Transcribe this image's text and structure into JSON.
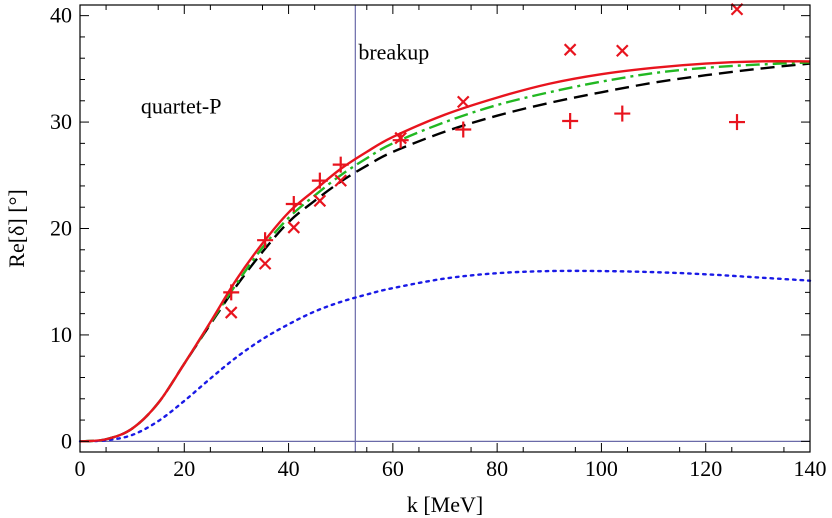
{
  "chart_data": {
    "type": "line",
    "title": "",
    "xlabel": "k [MeV]",
    "ylabel": "Re[δ] [°]",
    "xlim": [
      0,
      140
    ],
    "ylim": [
      -1,
      41
    ],
    "xticks": [
      0,
      20,
      40,
      60,
      80,
      100,
      120,
      140
    ],
    "yticks": [
      0,
      10,
      20,
      30,
      40
    ],
    "grid": false,
    "annotations": [
      {
        "text": "quartet-P",
        "x": 4,
        "y": 31
      },
      {
        "text": "breakup",
        "x": 53,
        "y": 37
      }
    ],
    "reference_lines": [
      {
        "orientation": "vertical",
        "value": 52.8,
        "color": "#6a6aa8"
      },
      {
        "orientation": "horizontal",
        "value": 0,
        "color": "#6a6aa8"
      }
    ],
    "series": [
      {
        "name": "solid",
        "style": "solid",
        "color": "#e8141e",
        "x": [
          0,
          5,
          10,
          15,
          20,
          25,
          30,
          35,
          40,
          45,
          50,
          55,
          60,
          70,
          80,
          90,
          100,
          110,
          120,
          130,
          140
        ],
        "y": [
          0,
          0.2,
          1.2,
          3.6,
          7.3,
          11.2,
          15.2,
          18.6,
          21.5,
          23.6,
          25.6,
          27.2,
          28.6,
          30.7,
          32.3,
          33.6,
          34.5,
          35.1,
          35.5,
          35.7,
          35.7
        ]
      },
      {
        "name": "dash-dot",
        "style": "dashdot",
        "color": "#22b822",
        "x": [
          0,
          5,
          10,
          15,
          20,
          25,
          30,
          35,
          40,
          45,
          50,
          55,
          60,
          70,
          80,
          90,
          100,
          110,
          120,
          130,
          140
        ],
        "y": [
          0,
          0.2,
          1.2,
          3.6,
          7.3,
          11.1,
          14.8,
          18.2,
          21.0,
          23.1,
          25.0,
          26.6,
          28.0,
          30.0,
          31.6,
          32.8,
          33.8,
          34.6,
          35.1,
          35.4,
          35.6
        ]
      },
      {
        "name": "dashed",
        "style": "dashed",
        "color": "#000000",
        "x": [
          0,
          5,
          10,
          15,
          20,
          25,
          30,
          35,
          40,
          45,
          50,
          55,
          60,
          70,
          80,
          90,
          100,
          110,
          120,
          130,
          140
        ],
        "y": [
          0,
          0.2,
          1.2,
          3.6,
          7.3,
          11.0,
          14.6,
          17.8,
          20.6,
          22.6,
          24.4,
          25.9,
          27.2,
          29.1,
          30.6,
          31.8,
          32.8,
          33.7,
          34.4,
          35.0,
          35.5
        ]
      },
      {
        "name": "dotted",
        "style": "dotted",
        "color": "#1a1ae6",
        "x": [
          0,
          5,
          10,
          15,
          20,
          25,
          30,
          35,
          40,
          45,
          50,
          55,
          60,
          70,
          80,
          90,
          100,
          110,
          120,
          130,
          140
        ],
        "y": [
          0,
          0.1,
          0.6,
          1.9,
          3.8,
          5.9,
          7.9,
          9.6,
          11.0,
          12.2,
          13.1,
          13.8,
          14.4,
          15.3,
          15.8,
          16.0,
          16.0,
          15.9,
          15.7,
          15.4,
          15.1
        ]
      }
    ],
    "markers": [
      {
        "name": "plus-markers",
        "symbol": "+",
        "color": "#e8141e",
        "x": [
          29,
          35.5,
          41,
          46,
          50,
          61.5,
          73.5,
          94,
          104,
          126
        ],
        "y": [
          14.0,
          18.9,
          22.3,
          24.5,
          26.0,
          28.3,
          29.3,
          30.1,
          30.8,
          30.0
        ]
      },
      {
        "name": "cross-markers",
        "symbol": "x",
        "color": "#e8141e",
        "x": [
          29,
          35.5,
          41,
          46,
          50,
          61.5,
          73.5,
          94,
          104,
          126
        ],
        "y": [
          12.1,
          16.7,
          20.1,
          22.6,
          24.5,
          28.5,
          31.9,
          36.8,
          36.7,
          40.6
        ]
      }
    ]
  }
}
